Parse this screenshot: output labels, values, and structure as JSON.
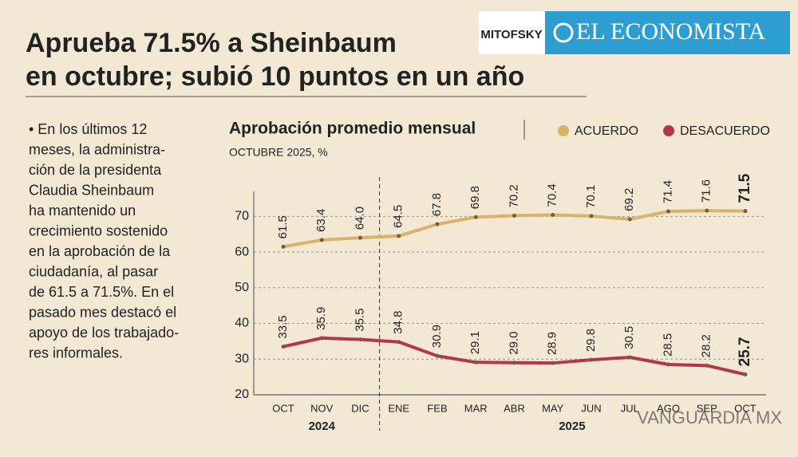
{
  "headline": {
    "lines": [
      "Aprueba 71.5% a Sheinbaum",
      "en octubre; subió 10 puntos en un año"
    ]
  },
  "logos": {
    "pollster": "MITOFSKY",
    "publisher": "EL ECONOMISTA"
  },
  "body": {
    "lines": [
      "• En los últimos 12",
      "meses, la administra-",
      "ción de la presidenta",
      "Claudia Sheinbaum",
      "ha mantenido un",
      "crecimiento sostenido",
      "en la aprobación de la",
      "ciudadanía, al pasar",
      "de 61.5 a 71.5%. En el",
      "pasado mes destacó el",
      "apoyo de los trabajado-",
      "res informales."
    ]
  },
  "watermark": "VANGUARDIA MX",
  "chart_data": {
    "type": "line",
    "title": "Aprobación promedio mensual",
    "subtitle": "OCTUBRE 2025, %",
    "categories": [
      "OCT",
      "NOV",
      "DIC",
      "ENE",
      "FEB",
      "MAR",
      "ABR",
      "MAY",
      "JUN",
      "JUL",
      "AGO",
      "SEP",
      "OCT"
    ],
    "x_groups": [
      "2024",
      "2025"
    ],
    "series": [
      {
        "name": "ACUERDO",
        "color": "#d9b26c",
        "values": [
          61.5,
          63.4,
          64.0,
          64.5,
          67.8,
          69.8,
          70.2,
          70.4,
          70.1,
          69.2,
          71.4,
          71.6,
          71.5
        ],
        "value_labels": [
          "61.5",
          "63.4",
          "64.0",
          "64.5",
          "67.8",
          "69.8",
          "70.2",
          "70.4",
          "70.1",
          "69.2",
          "71.4",
          "71.6",
          "71.5"
        ]
      },
      {
        "name": "DESACUERDO",
        "color": "#b2374b",
        "values": [
          33.5,
          35.9,
          35.5,
          34.8,
          30.9,
          29.1,
          29.0,
          28.9,
          29.8,
          30.5,
          28.5,
          28.2,
          25.7
        ],
        "value_labels": [
          "33.5",
          "35.9",
          "35.5",
          "34.8",
          "30.9",
          "29.1",
          "29.0",
          "28.9",
          "29.8",
          "30.5",
          "28.5",
          "28.2",
          "25.7"
        ]
      }
    ],
    "ylim": [
      20,
      77
    ],
    "yticks": [
      20,
      30,
      40,
      50,
      60,
      70
    ],
    "grid": true,
    "legend": "top-right"
  }
}
